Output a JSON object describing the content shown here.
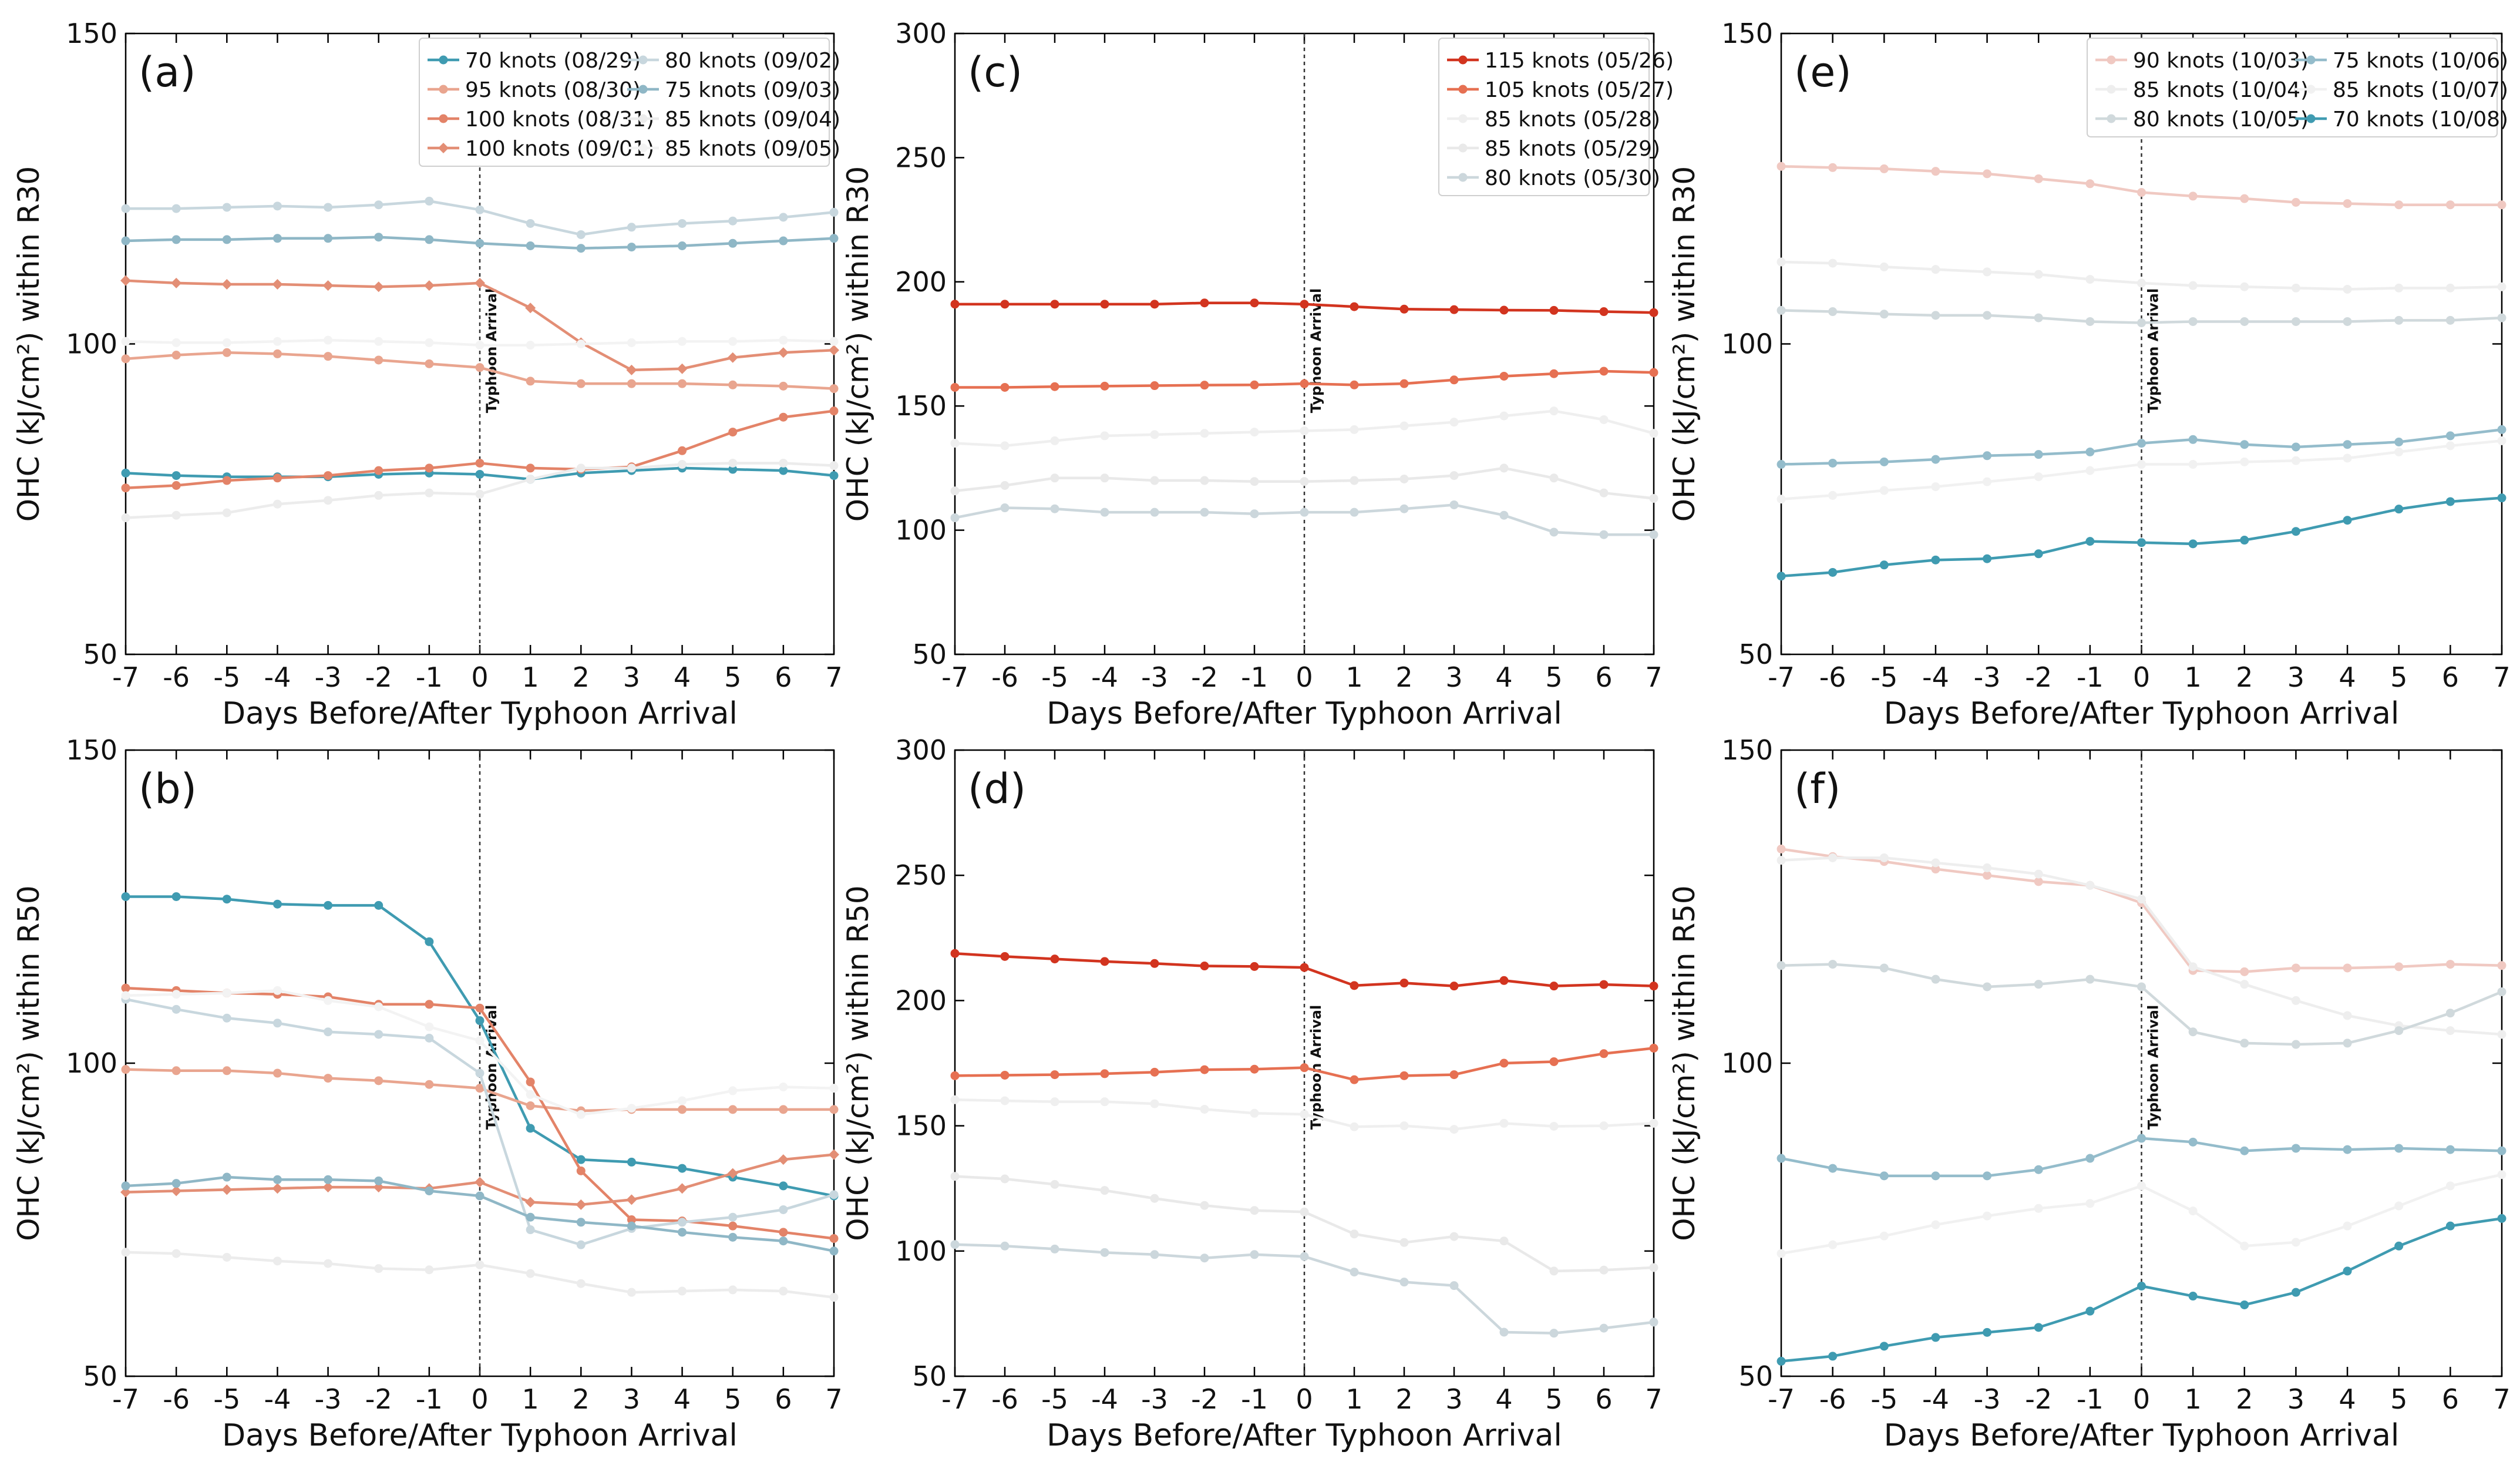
{
  "figure": {
    "xlabel": "Days Before/After Typhoon Arrival",
    "arrival_label": "Typhoon Arrival"
  },
  "chart_data": [
    {
      "id": "a",
      "panel_label": "(a)",
      "type": "line",
      "ylabel": "OHC (kJ/cm²) within R30",
      "xlabel": "Days Before/After Typhoon Arrival",
      "xlim": [
        -7,
        7
      ],
      "ylim": [
        50,
        150
      ],
      "yticks": [
        50,
        100,
        150
      ],
      "x": [
        -7,
        -6,
        -5,
        -4,
        -3,
        -2,
        -1,
        0,
        1,
        2,
        3,
        4,
        5,
        6,
        7
      ],
      "legend_columns": 2,
      "series": [
        {
          "name": "70 knots (08/29)",
          "color": "#3f9bb1",
          "marker": "circle",
          "values": [
            79.2,
            78.8,
            78.6,
            78.6,
            78.6,
            79,
            79.2,
            79,
            78.2,
            79.2,
            79.6,
            80,
            79.8,
            79.6,
            78.8
          ]
        },
        {
          "name": "95 knots (08/30)",
          "color": "#e9a58f",
          "marker": "circle",
          "values": [
            97.6,
            98.2,
            98.6,
            98.4,
            98,
            97.4,
            96.8,
            96.2,
            94,
            93.6,
            93.6,
            93.6,
            93.4,
            93.2,
            92.8
          ]
        },
        {
          "name": "100 knots (08/31)",
          "color": "#e38368",
          "marker": "circle",
          "values": [
            76.8,
            77.2,
            78,
            78.4,
            78.8,
            79.6,
            80,
            80.8,
            80,
            79.8,
            80.2,
            82.8,
            85.8,
            88.2,
            89.2
          ]
        },
        {
          "name": "100 knots (09/01)",
          "color": "#e38e75",
          "marker": "diamond",
          "values": [
            110.2,
            109.8,
            109.6,
            109.6,
            109.4,
            109.2,
            109.4,
            109.8,
            105.8,
            100.2,
            95.8,
            96,
            97.8,
            98.6,
            99
          ]
        },
        {
          "name": "80 knots (09/02)",
          "color": "#c8d7de",
          "marker": "circle",
          "values": [
            121.8,
            121.8,
            122,
            122.2,
            122,
            122.4,
            123,
            121.6,
            119.4,
            117.6,
            118.8,
            119.4,
            119.8,
            120.4,
            121.2
          ]
        },
        {
          "name": "75 knots (09/03)",
          "color": "#8fb7c6",
          "marker": "circle",
          "values": [
            116.6,
            116.8,
            116.8,
            117,
            117,
            117.2,
            116.8,
            116.2,
            115.8,
            115.4,
            115.6,
            115.8,
            116.2,
            116.6,
            117
          ]
        },
        {
          "name": "85 knots (09/04)",
          "color": "#ececec",
          "marker": "circle",
          "values": [
            72,
            72.4,
            72.8,
            74.2,
            74.8,
            75.6,
            76,
            75.8,
            78.2,
            80,
            80,
            80.6,
            80.8,
            80.8,
            80.4
          ]
        },
        {
          "name": "85 knots (09/05)",
          "color": "#f3f3f3",
          "marker": "circle",
          "values": [
            100.4,
            100.2,
            100.2,
            100.4,
            100.6,
            100.4,
            100.2,
            99.8,
            99.8,
            100,
            100.2,
            100.4,
            100.4,
            100.6,
            100.4
          ]
        }
      ]
    },
    {
      "id": "b",
      "panel_label": "(b)",
      "type": "line",
      "ylabel": "OHC (kJ/cm²) within R50",
      "xlabel": "Days Before/After Typhoon Arrival",
      "xlim": [
        -7,
        7
      ],
      "ylim": [
        50,
        150
      ],
      "yticks": [
        50,
        100,
        150
      ],
      "x": [
        -7,
        -6,
        -5,
        -4,
        -3,
        -2,
        -1,
        0,
        1,
        2,
        3,
        4,
        5,
        6,
        7
      ],
      "series": [
        {
          "name": "70 knots (08/29)",
          "color": "#3f9bb1",
          "marker": "circle",
          "values": [
            126.6,
            126.6,
            126.2,
            125.4,
            125.2,
            125.2,
            119.4,
            106.8,
            89.6,
            84.6,
            84.2,
            83.2,
            81.8,
            80.4,
            78.8
          ]
        },
        {
          "name": "95 knots (08/30)",
          "color": "#e9a58f",
          "marker": "circle",
          "values": [
            99,
            98.8,
            98.8,
            98.4,
            97.6,
            97.2,
            96.6,
            96,
            93.2,
            92.4,
            92.6,
            92.6,
            92.6,
            92.6,
            92.6
          ]
        },
        {
          "name": "100 knots (08/31)",
          "color": "#e38368",
          "marker": "circle",
          "values": [
            112,
            111.6,
            111.2,
            111,
            110.6,
            109.4,
            109.4,
            108.8,
            97,
            82.8,
            75,
            74.8,
            74,
            73,
            72
          ]
        },
        {
          "name": "100 knots (09/01)",
          "color": "#e38e75",
          "marker": "diamond",
          "values": [
            79.4,
            79.6,
            79.8,
            80,
            80.2,
            80.2,
            80,
            81,
            77.8,
            77.4,
            78.2,
            80,
            82.4,
            84.6,
            85.4
          ]
        },
        {
          "name": "80 knots (09/02)",
          "color": "#c8d7de",
          "marker": "circle",
          "values": [
            110.2,
            108.6,
            107.2,
            106.4,
            105,
            104.6,
            104,
            98.4,
            73.4,
            71,
            73.6,
            74.6,
            75.4,
            76.6,
            79
          ]
        },
        {
          "name": "75 knots (09/03)",
          "color": "#8fb7c6",
          "marker": "circle",
          "values": [
            80.4,
            80.8,
            81.8,
            81.4,
            81.4,
            81.2,
            79.6,
            78.8,
            75.4,
            74.6,
            74,
            73,
            72.2,
            71.6,
            70
          ]
        },
        {
          "name": "85 knots (09/04)",
          "color": "#ececec",
          "marker": "circle",
          "values": [
            69.8,
            69.6,
            69,
            68.4,
            68,
            67.2,
            67,
            67.8,
            66.4,
            64.8,
            63.4,
            63.6,
            63.8,
            63.6,
            62.6
          ]
        },
        {
          "name": "85 knots (09/05)",
          "color": "#f3f3f3",
          "marker": "circle",
          "values": [
            110.8,
            111,
            111.2,
            111.6,
            110,
            109,
            105.8,
            103.6,
            95,
            91.8,
            92.8,
            94,
            95.6,
            96.2,
            96
          ]
        }
      ]
    },
    {
      "id": "c",
      "panel_label": "(c)",
      "type": "line",
      "ylabel": "OHC (kJ/cm²) within R30",
      "xlabel": "Days Before/After Typhoon Arrival",
      "xlim": [
        -7,
        7
      ],
      "ylim": [
        50,
        300
      ],
      "yticks": [
        50,
        100,
        150,
        200,
        250,
        300
      ],
      "x": [
        -7,
        -6,
        -5,
        -4,
        -3,
        -2,
        -1,
        0,
        1,
        2,
        3,
        4,
        5,
        6,
        7
      ],
      "legend_columns": 1,
      "series": [
        {
          "name": "115 knots (05/26)",
          "color": "#d2341f",
          "marker": "circle",
          "values": [
            191,
            191,
            191,
            191,
            191,
            191.5,
            191.5,
            191,
            190,
            189,
            188.8,
            188.6,
            188.5,
            188,
            187.6
          ]
        },
        {
          "name": "105 knots (05/27)",
          "color": "#e67052",
          "marker": "circle",
          "values": [
            157.5,
            157.5,
            157.8,
            158,
            158.2,
            158.4,
            158.5,
            159,
            158.5,
            159,
            160.5,
            162,
            163,
            164,
            163.5
          ]
        },
        {
          "name": "85 knots (05/28)",
          "color": "#efefef",
          "marker": "circle",
          "values": [
            135,
            134,
            136,
            138,
            138.5,
            139,
            139.5,
            140,
            140.5,
            142,
            143.5,
            146,
            148,
            144.5,
            139
          ]
        },
        {
          "name": "85 knots (05/29)",
          "color": "#e9e9e9",
          "marker": "circle",
          "values": [
            115.8,
            118,
            121,
            121,
            120,
            120,
            119.6,
            119.6,
            120,
            120.6,
            122,
            125,
            121,
            115,
            112.8
          ]
        },
        {
          "name": "80 knots (05/30)",
          "color": "#ccd7dc",
          "marker": "circle",
          "values": [
            105,
            109,
            108.6,
            107.2,
            107.2,
            107.2,
            106.6,
            107.2,
            107.2,
            108.6,
            110.2,
            106,
            99.2,
            98.2,
            98.2
          ]
        }
      ]
    },
    {
      "id": "d",
      "panel_label": "(d)",
      "type": "line",
      "ylabel": "OHC (kJ/cm²) within R50",
      "xlabel": "Days Before/After Typhoon Arrival",
      "xlim": [
        -7,
        7
      ],
      "ylim": [
        50,
        300
      ],
      "yticks": [
        50,
        100,
        150,
        200,
        250,
        300
      ],
      "x": [
        -7,
        -6,
        -5,
        -4,
        -3,
        -2,
        -1,
        0,
        1,
        2,
        3,
        4,
        5,
        6,
        7
      ],
      "series": [
        {
          "name": "115 knots (05/26)",
          "color": "#d2341f",
          "marker": "circle",
          "values": [
            218.8,
            217.6,
            216.6,
            215.6,
            214.8,
            213.8,
            213.6,
            213.2,
            206,
            207,
            205.8,
            208,
            205.8,
            206.4,
            205.8
          ]
        },
        {
          "name": "105 knots (05/27)",
          "color": "#e67052",
          "marker": "circle",
          "values": [
            170,
            170.2,
            170.4,
            170.8,
            171.4,
            172.4,
            172.6,
            173.2,
            168.4,
            170,
            170.4,
            175,
            175.6,
            178.8,
            181
          ]
        },
        {
          "name": "85 knots (05/28)",
          "color": "#efefef",
          "marker": "circle",
          "values": [
            160.4,
            160,
            159.6,
            159.6,
            158.8,
            156.6,
            155,
            154.6,
            149.6,
            150,
            148.6,
            151,
            149.8,
            150,
            151
          ]
        },
        {
          "name": "85 knots (05/29)",
          "color": "#e9e9e9",
          "marker": "circle",
          "values": [
            129.8,
            128.8,
            126.6,
            124.2,
            121,
            118.2,
            116.2,
            115.6,
            106.8,
            103.4,
            105.8,
            104,
            92,
            92.4,
            93.4
          ]
        },
        {
          "name": "80 knots (05/30)",
          "color": "#ccd7dc",
          "marker": "circle",
          "values": [
            102.6,
            102,
            100.8,
            99.4,
            98.6,
            97.2,
            98.6,
            97.8,
            91.6,
            87.6,
            86.2,
            67.6,
            67.2,
            69.2,
            71.6
          ]
        }
      ]
    },
    {
      "id": "e",
      "panel_label": "(e)",
      "type": "line",
      "ylabel": "OHC (kJ/cm²) within R30",
      "xlabel": "Days Before/After Typhoon Arrival",
      "xlim": [
        -7,
        7
      ],
      "ylim": [
        50,
        150
      ],
      "yticks": [
        50,
        100,
        150
      ],
      "x": [
        -7,
        -6,
        -5,
        -4,
        -3,
        -2,
        -1,
        0,
        1,
        2,
        3,
        4,
        5,
        6,
        7
      ],
      "legend_columns": 2,
      "series": [
        {
          "name": "90 knots (10/03)",
          "color": "#f0c9c2",
          "marker": "circle",
          "values": [
            128.6,
            128.4,
            128.2,
            127.8,
            127.4,
            126.6,
            125.8,
            124.4,
            123.8,
            123.4,
            122.8,
            122.6,
            122.4,
            122.4,
            122.4
          ]
        },
        {
          "name": "85 knots (10/04)",
          "color": "#eeeeee",
          "marker": "circle",
          "values": [
            113.2,
            113,
            112.4,
            112,
            111.6,
            111.2,
            110.4,
            109.8,
            109.4,
            109.2,
            109,
            108.8,
            109,
            109,
            109.2
          ]
        },
        {
          "name": "80 knots (10/05)",
          "color": "#d0d9dc",
          "marker": "circle",
          "values": [
            105.4,
            105.2,
            104.8,
            104.6,
            104.6,
            104.2,
            103.6,
            103.4,
            103.6,
            103.6,
            103.6,
            103.6,
            103.8,
            103.8,
            104.2
          ]
        },
        {
          "name": "75 knots (10/06)",
          "color": "#94bccb",
          "marker": "circle",
          "values": [
            80.6,
            80.8,
            81,
            81.4,
            82,
            82.2,
            82.6,
            84,
            84.6,
            83.8,
            83.4,
            83.8,
            84.2,
            85.2,
            86.2
          ]
        },
        {
          "name": "85 knots (10/07)",
          "color": "#f1f1f1",
          "marker": "circle",
          "values": [
            75,
            75.6,
            76.4,
            77,
            77.8,
            78.6,
            79.6,
            80.6,
            80.6,
            81,
            81.2,
            81.6,
            82.6,
            83.6,
            84.4
          ]
        },
        {
          "name": "70 knots (10/08)",
          "color": "#3f9bb1",
          "marker": "circle",
          "values": [
            62.6,
            63.2,
            64.4,
            65.2,
            65.4,
            66.2,
            68.2,
            68,
            67.8,
            68.4,
            69.8,
            71.6,
            73.4,
            74.6,
            75.2
          ]
        }
      ]
    },
    {
      "id": "f",
      "panel_label": "(f)",
      "type": "line",
      "ylabel": "OHC (kJ/cm²) within R50",
      "xlabel": "Days Before/After Typhoon Arrival",
      "xlim": [
        -7,
        7
      ],
      "ylim": [
        50,
        150
      ],
      "yticks": [
        50,
        100,
        150
      ],
      "x": [
        -7,
        -6,
        -5,
        -4,
        -3,
        -2,
        -1,
        0,
        1,
        2,
        3,
        4,
        5,
        6,
        7
      ],
      "series": [
        {
          "name": "90 knots (10/03)",
          "color": "#f0c9c2",
          "marker": "circle",
          "values": [
            134.2,
            133,
            132.2,
            131,
            130,
            129,
            128.4,
            125.6,
            114.8,
            114.6,
            115.2,
            115.2,
            115.4,
            115.8,
            115.6
          ]
        },
        {
          "name": "85 knots (10/04)",
          "color": "#eeeeee",
          "marker": "circle",
          "values": [
            132.4,
            132.8,
            132.8,
            132,
            131.2,
            130.2,
            128.4,
            126.2,
            115.4,
            112.6,
            110,
            107.6,
            106,
            105.2,
            104.6
          ]
        },
        {
          "name": "80 knots (10/05)",
          "color": "#d0d9dc",
          "marker": "circle",
          "values": [
            115.6,
            115.8,
            115.2,
            113.4,
            112.2,
            112.6,
            113.4,
            112.2,
            105,
            103.2,
            103,
            103.2,
            105.2,
            108,
            111.4
          ]
        },
        {
          "name": "75 knots (10/06)",
          "color": "#94bccb",
          "marker": "circle",
          "values": [
            84.8,
            83.2,
            82,
            82,
            82,
            83,
            84.8,
            88,
            87.4,
            86,
            86.4,
            86.2,
            86.4,
            86.2,
            86
          ]
        },
        {
          "name": "85 knots (10/07)",
          "color": "#f1f1f1",
          "marker": "circle",
          "values": [
            69.6,
            71,
            72.4,
            74.2,
            75.6,
            76.8,
            77.6,
            80.4,
            76.4,
            70.8,
            71.4,
            74,
            77.2,
            80.4,
            82.2
          ]
        },
        {
          "name": "70 knots (10/08)",
          "color": "#3f9bb1",
          "marker": "circle",
          "values": [
            52.4,
            53.2,
            54.8,
            56.2,
            57,
            57.8,
            60.4,
            64.4,
            62.8,
            61.4,
            63.4,
            66.8,
            70.8,
            74,
            75.2
          ]
        }
      ]
    }
  ]
}
